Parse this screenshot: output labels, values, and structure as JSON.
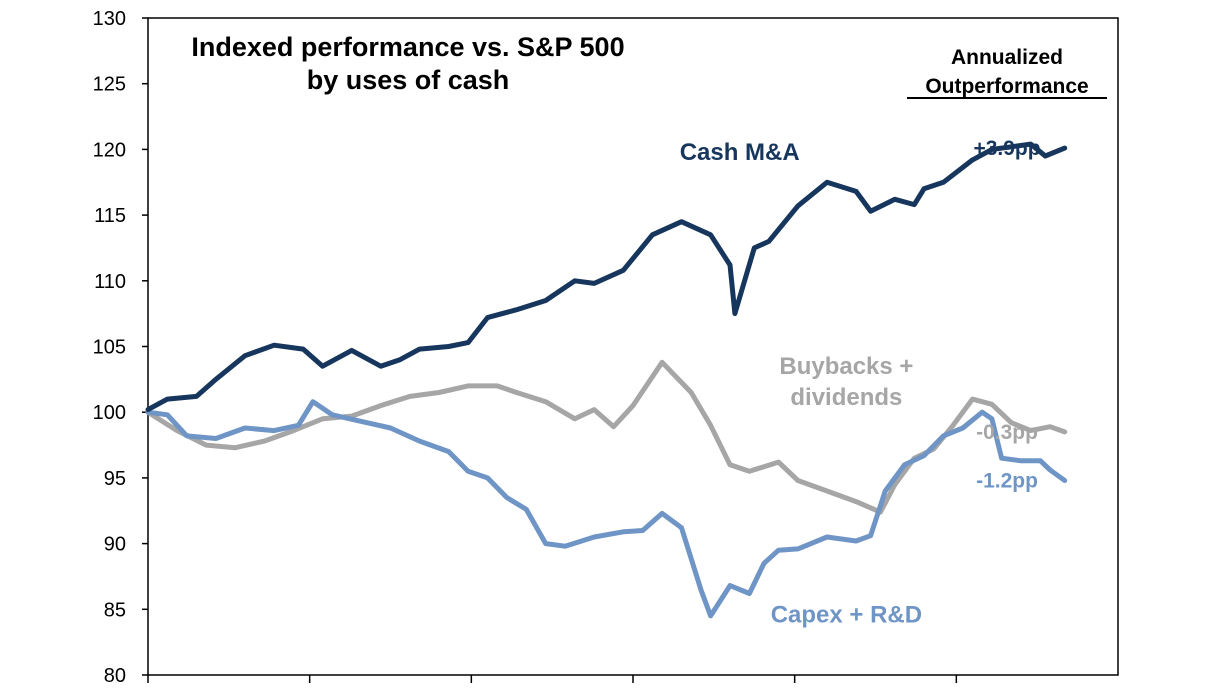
{
  "chart_data": {
    "type": "line",
    "title_line1": "Indexed performance vs. S&P 500",
    "title_line2": "by uses of cash",
    "xlabel": "",
    "ylabel": "",
    "ylim": [
      80,
      130
    ],
    "y_ticks": [
      "80",
      "85",
      "90",
      "95",
      "100",
      "105",
      "110",
      "115",
      "120",
      "125",
      "130"
    ],
    "x_ticks_count": 6,
    "grid": false,
    "annotation_header_line1": "Annualized",
    "annotation_header_line2": "Outperformance",
    "x_range": [
      0,
      1
    ],
    "series": [
      {
        "name": "Cash M&A",
        "outperformance": "+3.9pp",
        "color": "#17365d",
        "points": [
          [
            0.0,
            100.2
          ],
          [
            0.02,
            101.0
          ],
          [
            0.05,
            101.2
          ],
          [
            0.07,
            102.5
          ],
          [
            0.1,
            104.3
          ],
          [
            0.13,
            105.1
          ],
          [
            0.16,
            104.8
          ],
          [
            0.18,
            103.5
          ],
          [
            0.21,
            104.7
          ],
          [
            0.24,
            103.5
          ],
          [
            0.26,
            104.0
          ],
          [
            0.28,
            104.8
          ],
          [
            0.31,
            105.0
          ],
          [
            0.33,
            105.3
          ],
          [
            0.35,
            107.2
          ],
          [
            0.38,
            107.8
          ],
          [
            0.41,
            108.5
          ],
          [
            0.44,
            110.0
          ],
          [
            0.46,
            109.8
          ],
          [
            0.49,
            110.8
          ],
          [
            0.52,
            113.5
          ],
          [
            0.55,
            114.5
          ],
          [
            0.58,
            113.5
          ],
          [
            0.6,
            111.2
          ],
          [
            0.605,
            107.5
          ],
          [
            0.625,
            112.5
          ],
          [
            0.64,
            113.0
          ],
          [
            0.67,
            115.7
          ],
          [
            0.7,
            117.5
          ],
          [
            0.73,
            116.8
          ],
          [
            0.745,
            115.3
          ],
          [
            0.77,
            116.2
          ],
          [
            0.79,
            115.8
          ],
          [
            0.8,
            117.0
          ],
          [
            0.82,
            117.5
          ],
          [
            0.85,
            119.2
          ],
          [
            0.87,
            120.0
          ],
          [
            0.89,
            120.2
          ],
          [
            0.91,
            120.4
          ],
          [
            0.925,
            119.5
          ],
          [
            0.945,
            120.1
          ]
        ],
        "label_x": 0.61,
        "label_y": 119.2
      },
      {
        "name_line1": "Buybacks +",
        "name_line2": "dividends",
        "outperformance": "-0.3pp",
        "color": "#a6a6a6",
        "points": [
          [
            0.0,
            100.0
          ],
          [
            0.03,
            98.6
          ],
          [
            0.06,
            97.5
          ],
          [
            0.09,
            97.3
          ],
          [
            0.12,
            97.8
          ],
          [
            0.15,
            98.6
          ],
          [
            0.18,
            99.5
          ],
          [
            0.21,
            99.7
          ],
          [
            0.24,
            100.5
          ],
          [
            0.27,
            101.2
          ],
          [
            0.3,
            101.5
          ],
          [
            0.33,
            102.0
          ],
          [
            0.36,
            102.0
          ],
          [
            0.38,
            101.5
          ],
          [
            0.41,
            100.8
          ],
          [
            0.44,
            99.5
          ],
          [
            0.46,
            100.2
          ],
          [
            0.48,
            98.9
          ],
          [
            0.5,
            100.5
          ],
          [
            0.53,
            103.8
          ],
          [
            0.56,
            101.5
          ],
          [
            0.58,
            99.0
          ],
          [
            0.6,
            96.0
          ],
          [
            0.62,
            95.5
          ],
          [
            0.65,
            96.2
          ],
          [
            0.67,
            94.8
          ],
          [
            0.7,
            94.0
          ],
          [
            0.73,
            93.2
          ],
          [
            0.755,
            92.4
          ],
          [
            0.77,
            94.5
          ],
          [
            0.79,
            96.5
          ],
          [
            0.81,
            97.2
          ],
          [
            0.83,
            99.0
          ],
          [
            0.85,
            101.0
          ],
          [
            0.87,
            100.6
          ],
          [
            0.89,
            99.2
          ],
          [
            0.91,
            98.6
          ],
          [
            0.93,
            98.9
          ],
          [
            0.945,
            98.5
          ]
        ],
        "label_x": 0.72,
        "label_y": 102.9
      },
      {
        "name": "Capex + R&D",
        "outperformance": "-1.2pp",
        "color": "#6f95c6",
        "points": [
          [
            0.0,
            100.0
          ],
          [
            0.02,
            99.8
          ],
          [
            0.04,
            98.2
          ],
          [
            0.07,
            98.0
          ],
          [
            0.1,
            98.8
          ],
          [
            0.13,
            98.6
          ],
          [
            0.155,
            99.0
          ],
          [
            0.17,
            100.8
          ],
          [
            0.19,
            99.8
          ],
          [
            0.22,
            99.3
          ],
          [
            0.25,
            98.8
          ],
          [
            0.28,
            97.8
          ],
          [
            0.31,
            97.0
          ],
          [
            0.33,
            95.5
          ],
          [
            0.35,
            95.0
          ],
          [
            0.37,
            93.5
          ],
          [
            0.39,
            92.6
          ],
          [
            0.41,
            90.0
          ],
          [
            0.43,
            89.8
          ],
          [
            0.46,
            90.5
          ],
          [
            0.49,
            90.9
          ],
          [
            0.51,
            91.0
          ],
          [
            0.53,
            92.3
          ],
          [
            0.55,
            91.2
          ],
          [
            0.57,
            86.5
          ],
          [
            0.58,
            84.5
          ],
          [
            0.6,
            86.8
          ],
          [
            0.62,
            86.2
          ],
          [
            0.635,
            88.5
          ],
          [
            0.65,
            89.5
          ],
          [
            0.67,
            89.6
          ],
          [
            0.7,
            90.5
          ],
          [
            0.73,
            90.2
          ],
          [
            0.745,
            90.6
          ],
          [
            0.76,
            94.0
          ],
          [
            0.78,
            96.0
          ],
          [
            0.8,
            96.7
          ],
          [
            0.82,
            98.2
          ],
          [
            0.84,
            98.8
          ],
          [
            0.86,
            100.0
          ],
          [
            0.87,
            99.5
          ],
          [
            0.88,
            96.5
          ],
          [
            0.9,
            96.3
          ],
          [
            0.92,
            96.3
          ],
          [
            0.93,
            95.6
          ],
          [
            0.945,
            94.8
          ]
        ],
        "label_x": 0.72,
        "label_y": 84.0
      }
    ]
  }
}
